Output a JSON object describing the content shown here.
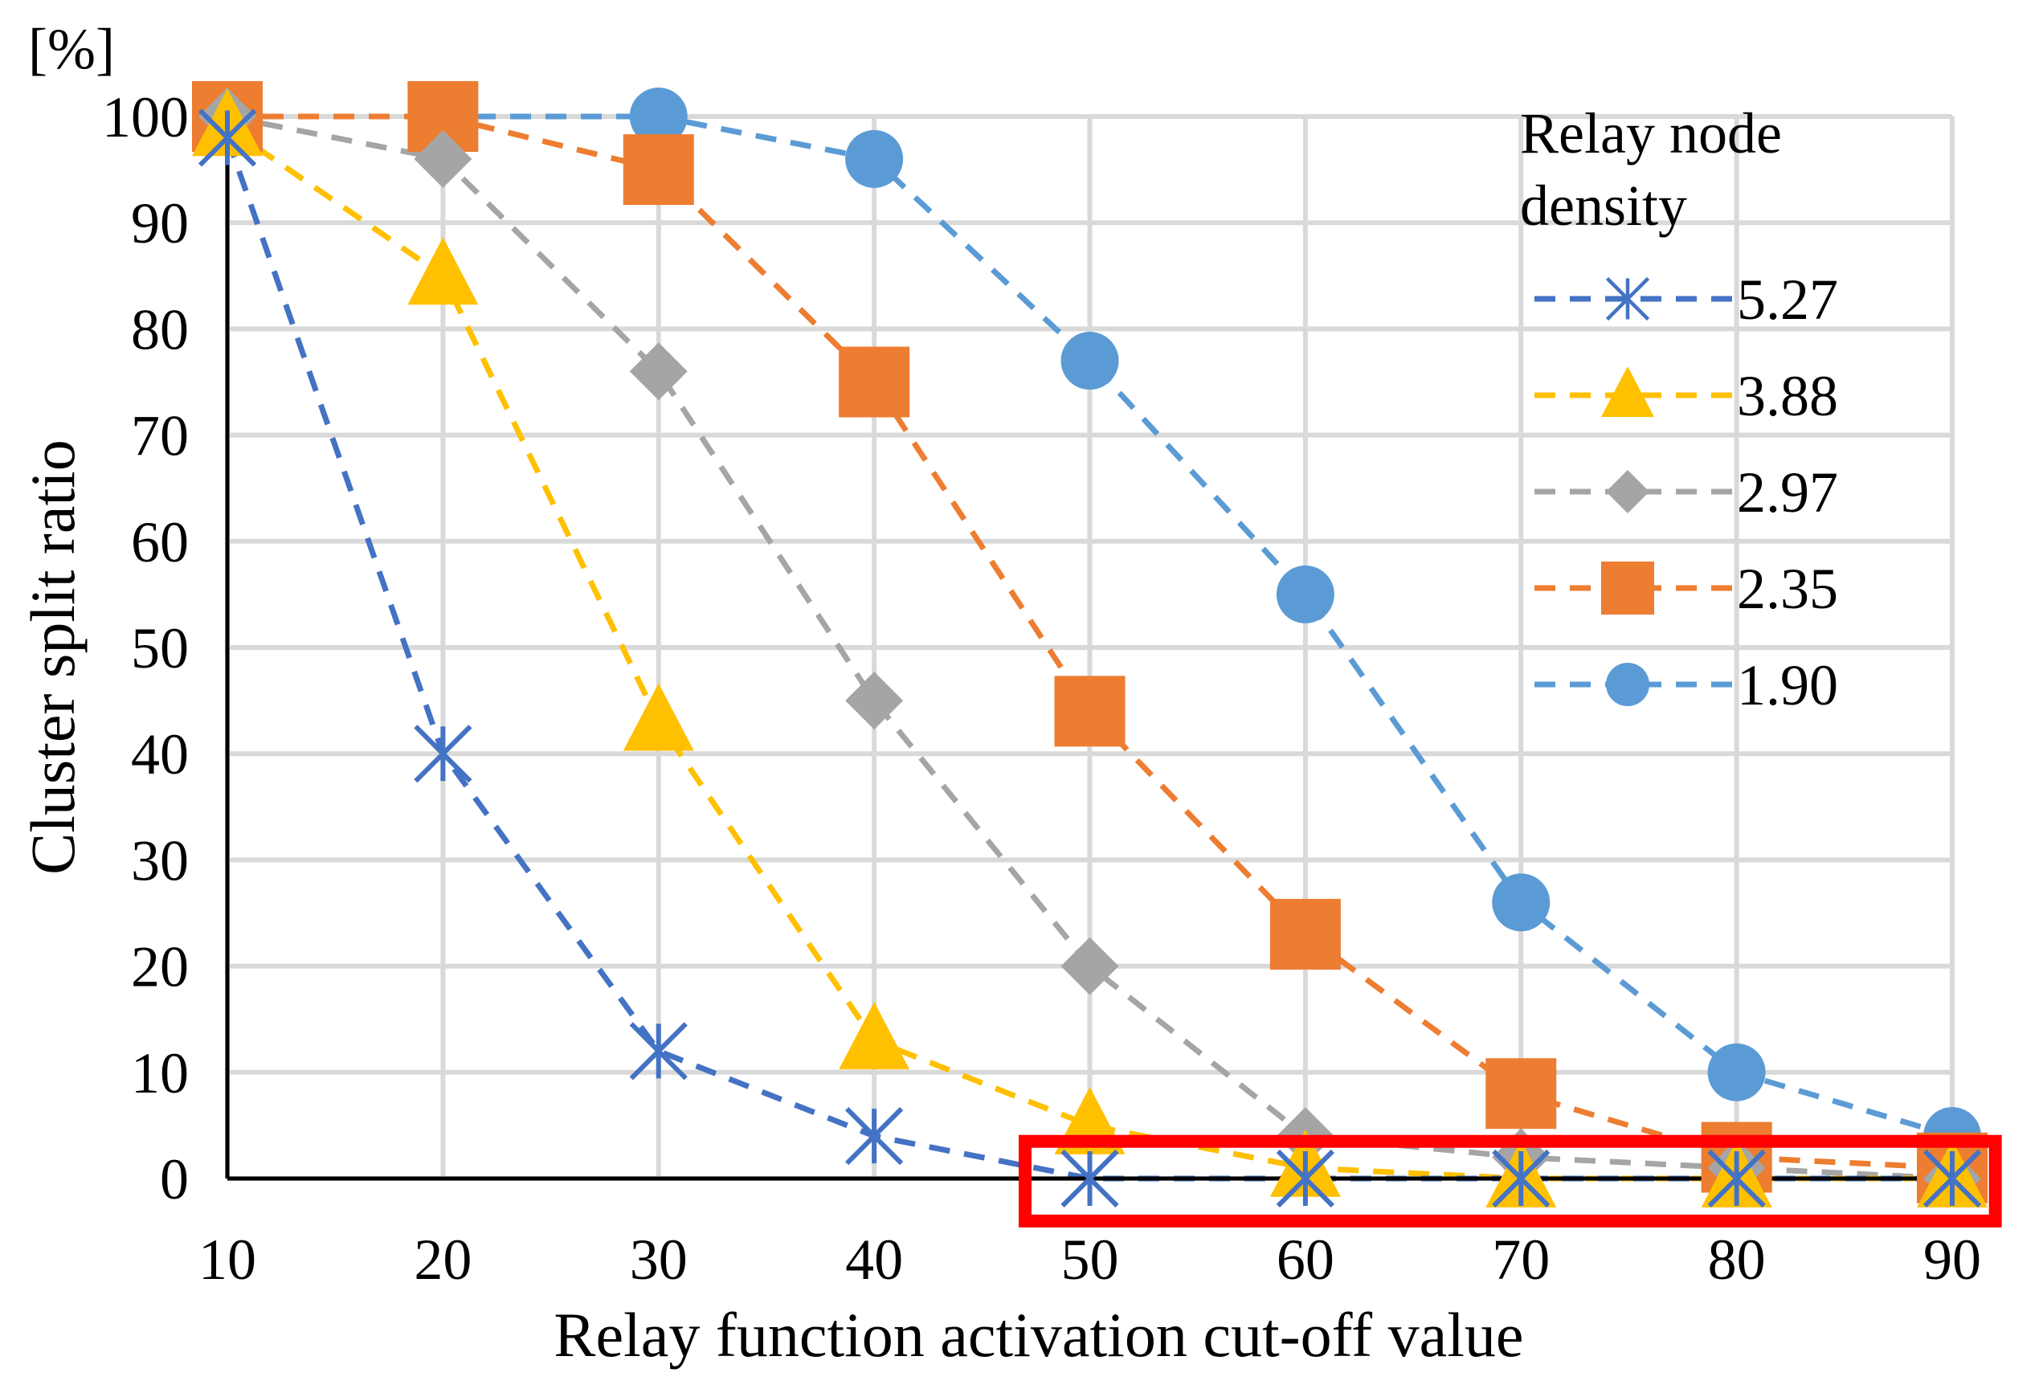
{
  "chart_data": {
    "type": "line",
    "title": "",
    "unit_label": "[%]",
    "xlabel": "Relay function activation cut-off value",
    "ylabel": "Cluster split ratio",
    "x": [
      10,
      20,
      30,
      40,
      50,
      60,
      70,
      80,
      90
    ],
    "xlim": [
      10,
      90
    ],
    "ylim": [
      0,
      100
    ],
    "xticks": [
      "10",
      "20",
      "30",
      "40",
      "50",
      "60",
      "70",
      "80",
      "90"
    ],
    "yticks": [
      "0",
      "10",
      "20",
      "30",
      "40",
      "50",
      "60",
      "70",
      "80",
      "90",
      "100"
    ],
    "grid": true,
    "legend": {
      "title_line1": "Relay node",
      "title_line2": "density",
      "placement": "top-right"
    },
    "series": [
      {
        "name": "5.27",
        "marker": "asterisk",
        "color": "#4472C4",
        "values": [
          98,
          40,
          12,
          4,
          0,
          0,
          0,
          0,
          0
        ]
      },
      {
        "name": "3.88",
        "marker": "triangle",
        "color": "#FFC000",
        "values": [
          99,
          85,
          43,
          13,
          5,
          1,
          0,
          0,
          0
        ]
      },
      {
        "name": "2.97",
        "marker": "diamond",
        "color": "#A5A5A5",
        "values": [
          100,
          96,
          76,
          45,
          20,
          4,
          2,
          1,
          0
        ]
      },
      {
        "name": "2.35",
        "marker": "square",
        "color": "#ED7D31",
        "values": [
          100,
          100,
          95,
          75,
          44,
          23,
          8,
          2,
          1
        ]
      },
      {
        "name": "1.90",
        "marker": "circle",
        "color": "#5B9BD5",
        "values": [
          100,
          100,
          100,
          96,
          77,
          55,
          26,
          10,
          4
        ]
      }
    ],
    "annotations": [
      {
        "type": "highlight-box",
        "color": "#FF0000",
        "x_range": [
          47,
          92
        ],
        "y_range": [
          -4,
          3.5
        ]
      }
    ]
  }
}
